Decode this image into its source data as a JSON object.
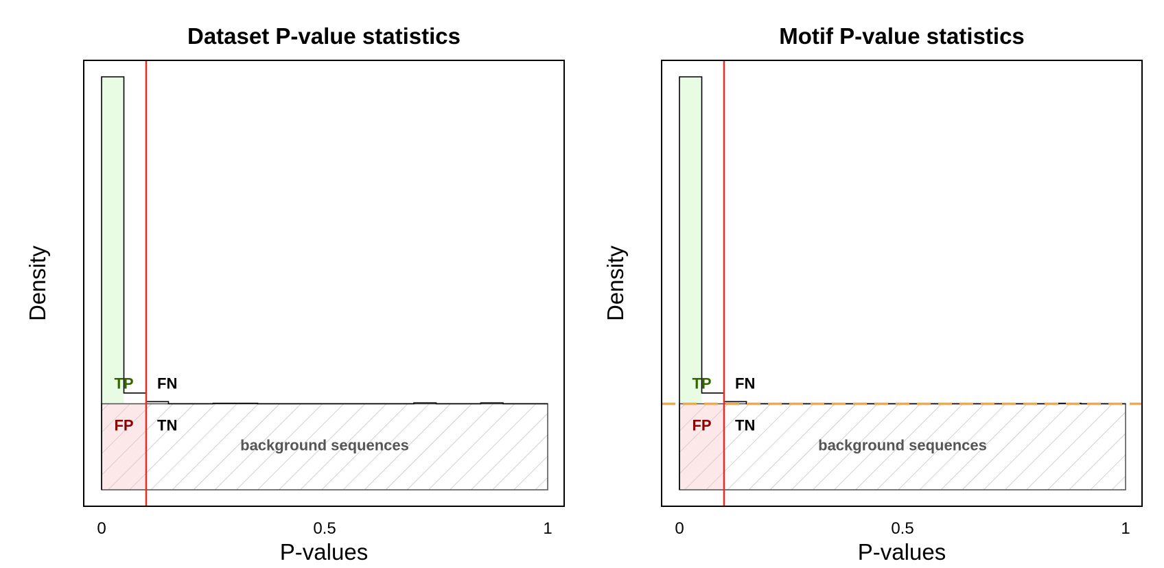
{
  "chart_data": [
    {
      "type": "bar",
      "title": "Dataset P-value statistics",
      "xlabel": "P-values",
      "ylabel": "Density",
      "xlim": [
        0,
        1
      ],
      "ylim": [
        0,
        10.5
      ],
      "x_ticks": [
        {
          "value": 0,
          "label": "0"
        },
        {
          "value": 0.5,
          "label": "0.5"
        },
        {
          "value": 1,
          "label": "1"
        }
      ],
      "bin_width": 0.05,
      "bins_x": [
        0,
        0.05,
        0.1,
        0.15,
        0.2,
        0.25,
        0.3,
        0.35,
        0.4,
        0.45,
        0.5,
        0.55,
        0.6,
        0.65,
        0.7,
        0.75,
        0.8,
        0.85,
        0.9,
        0.95
      ],
      "density": [
        9.6,
        2.25,
        2.05,
        2.0,
        2.0,
        2.01,
        2.01,
        2.0,
        2.0,
        2.0,
        2.0,
        2.0,
        2.0,
        2.0,
        2.02,
        2.0,
        2.0,
        2.02,
        2.0,
        2.0
      ],
      "background_density": 2.0,
      "threshold": 0.1,
      "null_line": null,
      "regions": {
        "tp": "TP",
        "fn": "FN",
        "fp": "FP",
        "tn": "TN",
        "background": "background sequences"
      },
      "colors": {
        "tp": "#336600",
        "fp": "#8b0000",
        "tp_fill": "#e8fce4",
        "fp_fill": "#fbe4e4",
        "threshold": "#e0302a",
        "null_line": "#f5a742",
        "hatch": "#b8b8b8"
      }
    },
    {
      "type": "bar",
      "title": "Motif P-value statistics",
      "xlabel": "P-values",
      "ylabel": "Density",
      "xlim": [
        0,
        1
      ],
      "ylim": [
        0,
        10.5
      ],
      "x_ticks": [
        {
          "value": 0,
          "label": "0"
        },
        {
          "value": 0.5,
          "label": "0.5"
        },
        {
          "value": 1,
          "label": "1"
        }
      ],
      "bin_width": 0.05,
      "bins_x": [
        0,
        0.05,
        0.1,
        0.15,
        0.2,
        0.25,
        0.3,
        0.35,
        0.4,
        0.45,
        0.5,
        0.55,
        0.6,
        0.65,
        0.7,
        0.75,
        0.8,
        0.85,
        0.9,
        0.95
      ],
      "density": [
        9.6,
        2.25,
        2.05,
        2.0,
        2.0,
        2.0,
        2.0,
        2.0,
        2.0,
        2.0,
        2.0,
        2.0,
        2.0,
        2.0,
        2.0,
        2.0,
        2.0,
        2.01,
        2.0,
        2.0
      ],
      "background_density": 2.0,
      "threshold": 0.1,
      "null_line": 2.0,
      "regions": {
        "tp": "TP",
        "fn": "FN",
        "fp": "FP",
        "tn": "TN",
        "background": "background sequences"
      },
      "colors": {
        "tp": "#336600",
        "fp": "#8b0000",
        "tp_fill": "#e8fce4",
        "fp_fill": "#fbe4e4",
        "threshold": "#e0302a",
        "null_line": "#f5a742",
        "hatch": "#b8b8b8"
      }
    }
  ]
}
